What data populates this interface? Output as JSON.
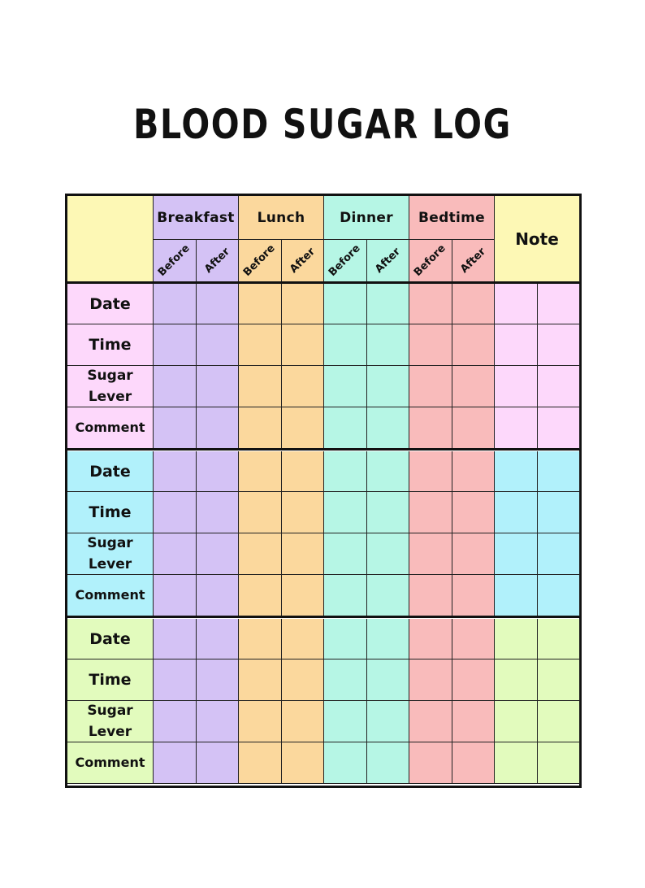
{
  "title": "BLOOD SUGAR LOG",
  "meals": [
    {
      "label": "Breakfast",
      "color": "#d4c2f5"
    },
    {
      "label": "Lunch",
      "color": "#fbd89d"
    },
    {
      "label": "Dinner",
      "color": "#b6f6e5"
    },
    {
      "label": "Bedtime",
      "color": "#f9bbbb"
    }
  ],
  "subheaders": [
    "Before",
    "After"
  ],
  "note_label": "Note",
  "corner_color": "#fdf8b5",
  "row_labels": [
    "Date",
    "Time",
    "Sugar\nLever",
    "Comment"
  ],
  "sections": [
    {
      "color": "#fdd8fb"
    },
    {
      "color": "#b1f1fb"
    },
    {
      "color": "#e2fbbd"
    }
  ]
}
